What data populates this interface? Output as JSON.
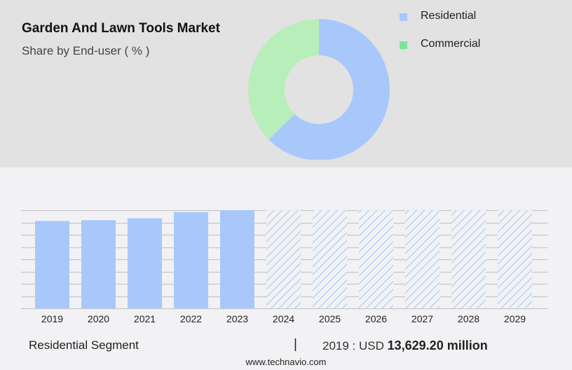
{
  "header": {
    "title": "Garden And Lawn Tools Market",
    "subtitle": "Share by End-user ( % )"
  },
  "legend": [
    {
      "label": "Residential",
      "color": "#a8c8fb"
    },
    {
      "label": "Commercial",
      "color": "#7be39a"
    }
  ],
  "footer": {
    "segment": "Residential Segment",
    "separator": "|",
    "value_prefix": "2019 : USD",
    "value_bold": "13,629.20 million",
    "url": "www.technavio.com"
  },
  "colors": {
    "residential": "#a8c8fb",
    "commercial_slice": "#b8eeba",
    "commercial_legend": "#7be39a",
    "grid": "#c8c8c8",
    "top_panel_bg": "#e2e2e2",
    "bottom_bg": "#f2f2f4"
  },
  "chart_data": [
    {
      "type": "pie",
      "title": "Garden And Lawn Tools Market",
      "subtitle": "Share by End-user ( % )",
      "donut": true,
      "categories": [
        "Residential",
        "Commercial"
      ],
      "values": [
        62.5,
        37.5
      ],
      "legend_position": "right"
    },
    {
      "type": "bar",
      "title": "Residential Segment",
      "categories": [
        "2019",
        "2020",
        "2021",
        "2022",
        "2023",
        "2024",
        "2025",
        "2026",
        "2027",
        "2028",
        "2029"
      ],
      "series": [
        {
          "name": "Historical",
          "values": [
            13629.2,
            13750,
            14050,
            15000,
            15300,
            null,
            null,
            null,
            null,
            null,
            null
          ]
        },
        {
          "name": "Forecast (hatched)",
          "values": [
            null,
            null,
            null,
            null,
            null,
            15300,
            15300,
            15300,
            15300,
            15300,
            15300
          ]
        }
      ],
      "xlabel": "",
      "ylabel": "USD million",
      "grid": true,
      "annotation": "2019 : USD 13,629.20 million"
    }
  ]
}
